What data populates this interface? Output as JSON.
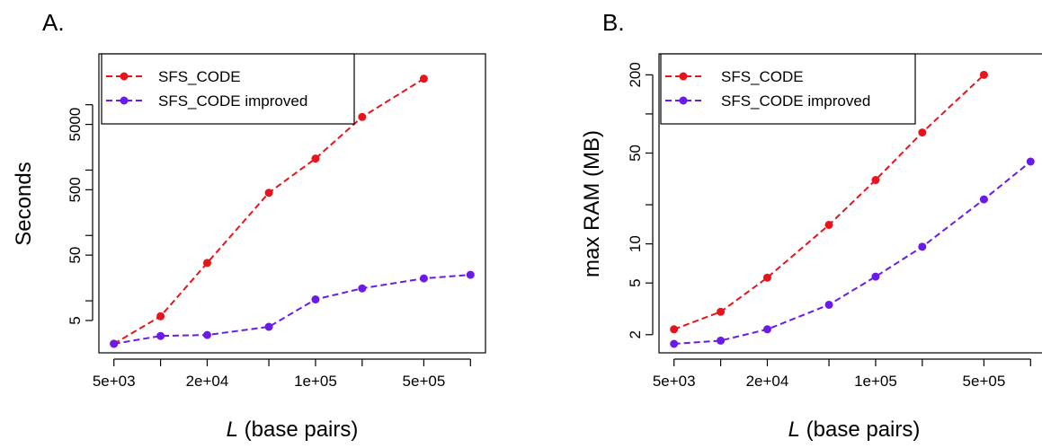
{
  "chart_data": [
    {
      "type": "line",
      "panel_label": "A.",
      "xlabel_italic": "L",
      "xlabel_rest": "(base pairs)",
      "ylabel": "Seconds",
      "x_scale": "log",
      "y_scale": "log",
      "x_ticks": [
        "5e+03",
        "2e+04",
        "1e+05",
        "5e+05"
      ],
      "x_tick_values": [
        5000,
        20000,
        100000,
        500000
      ],
      "x_minor_ticks": [
        10000,
        50000,
        200000,
        1000000
      ],
      "y_ticks": [
        "5",
        "50",
        "500",
        "5000"
      ],
      "y_tick_values": [
        5,
        50,
        500,
        5000
      ],
      "y_minor_ticks": [
        10,
        100,
        1000,
        10000
      ],
      "xlim": [
        4000,
        1250000
      ],
      "ylim": [
        1.6,
        60000
      ],
      "legend_position": "top-left",
      "series": [
        {
          "name": "SFS_CODE",
          "color": "#e8141c",
          "x": [
            5000,
            10000,
            20000,
            50000,
            100000,
            200000,
            500000
          ],
          "y": [
            2.2,
            5.8,
            38,
            450,
            1500,
            6500,
            25000
          ]
        },
        {
          "name": "SFS_CODE improved",
          "color": "#6a1be8",
          "x": [
            5000,
            10000,
            20000,
            50000,
            100000,
            200000,
            500000,
            1000000
          ],
          "y": [
            2.2,
            2.9,
            3.0,
            4.0,
            10.5,
            15.5,
            22,
            25
          ]
        }
      ]
    },
    {
      "type": "line",
      "panel_label": "B.",
      "xlabel_italic": "L",
      "xlabel_rest": "(base pairs)",
      "ylabel": "max RAM (MB)",
      "x_scale": "log",
      "y_scale": "log",
      "x_ticks": [
        "5e+03",
        "2e+04",
        "1e+05",
        "5e+05"
      ],
      "x_tick_values": [
        5000,
        20000,
        100000,
        500000
      ],
      "x_minor_ticks": [
        10000,
        50000,
        200000,
        1000000
      ],
      "y_ticks": [
        "2",
        "5",
        "10",
        "50",
        "200"
      ],
      "y_tick_values": [
        2,
        5,
        10,
        50,
        200
      ],
      "y_minor_ticks": [
        20,
        100
      ],
      "xlim": [
        4000,
        1250000
      ],
      "ylim": [
        1.45,
        290
      ],
      "legend_position": "top-left",
      "series": [
        {
          "name": "SFS_CODE",
          "color": "#e8141c",
          "x": [
            5000,
            10000,
            20000,
            50000,
            100000,
            200000,
            500000
          ],
          "y": [
            2.2,
            3.0,
            5.5,
            14,
            31,
            72,
            200
          ]
        },
        {
          "name": "SFS_CODE improved",
          "color": "#6a1be8",
          "x": [
            5000,
            10000,
            20000,
            50000,
            100000,
            200000,
            500000,
            1000000
          ],
          "y": [
            1.7,
            1.8,
            2.2,
            3.4,
            5.6,
            9.5,
            22,
            43
          ]
        }
      ]
    }
  ]
}
